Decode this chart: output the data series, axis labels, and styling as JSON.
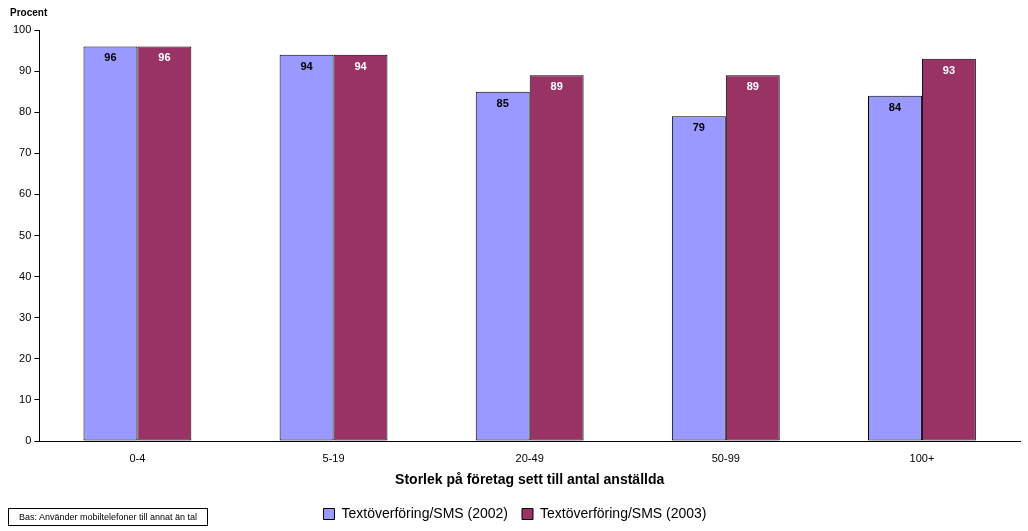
{
  "chart_data": {
    "type": "bar",
    "ylabel": "Procent",
    "xlabel": "Storlek på företag sett till antal anställda",
    "categories": [
      "0-4",
      "5-19",
      "20-49",
      "50-99",
      "100+"
    ],
    "series": [
      {
        "name": "Textöverföring/SMS (2002)",
        "color": "#9999ff",
        "values": [
          96,
          94,
          85,
          79,
          84
        ]
      },
      {
        "name": "Textöverföring/SMS (2003)",
        "color": "#993366",
        "values": [
          96,
          94,
          89,
          89,
          93
        ]
      }
    ],
    "ylim": [
      0,
      100
    ],
    "yticks": [
      0,
      10,
      20,
      30,
      40,
      50,
      60,
      70,
      80,
      90,
      100
    ],
    "grid": false,
    "legend": "bottom",
    "data_labels": true,
    "annotations": [
      "Bas: Använder mobiltelefoner till annat än tal"
    ]
  }
}
